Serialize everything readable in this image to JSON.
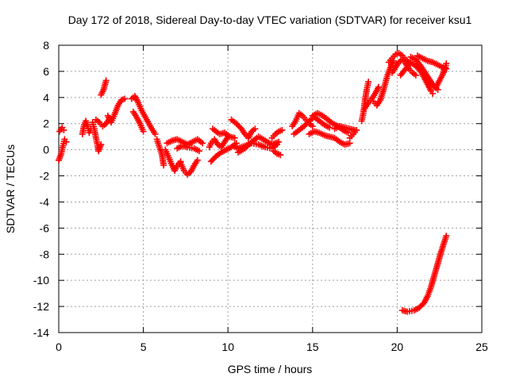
{
  "chart_data": {
    "type": "scatter",
    "title": "Day 172 of 2018, Sidereal Day-to-day VTEC variation (SDTVAR) for receiver ksu1",
    "xlabel": "GPS time / hours",
    "ylabel": "SDTVAR / TECUs",
    "xlim": [
      0,
      25
    ],
    "ylim": [
      -14,
      8
    ],
    "xticks": [
      0,
      5,
      10,
      15,
      20,
      25
    ],
    "yticks": [
      -14,
      -12,
      -10,
      -8,
      -6,
      -4,
      -2,
      0,
      2,
      4,
      6,
      8
    ],
    "grid": true,
    "marker": "+",
    "color": "#ff0000",
    "series": [
      {
        "name": "SDTVAR",
        "tracks": [
          [
            [
              0.0,
              -0.8
            ],
            [
              0.15,
              -0.3
            ],
            [
              0.25,
              0.3
            ],
            [
              0.35,
              0.8
            ],
            [
              0.45,
              0.6
            ]
          ],
          [
            [
              0.05,
              1.4
            ],
            [
              0.2,
              1.7
            ],
            [
              0.3,
              1.5
            ]
          ],
          [
            [
              1.4,
              1.2
            ],
            [
              1.5,
              1.9
            ],
            [
              1.6,
              2.2
            ],
            [
              1.7,
              1.8
            ],
            [
              1.8,
              1.3
            ],
            [
              1.9,
              1.6
            ]
          ],
          [
            [
              2.0,
              2.1
            ],
            [
              2.1,
              1.6
            ],
            [
              2.2,
              0.9
            ],
            [
              2.3,
              0.3
            ],
            [
              2.35,
              -0.1
            ],
            [
              2.5,
              0.4
            ]
          ],
          [
            [
              2.2,
              2.3
            ],
            [
              2.4,
              2.1
            ],
            [
              2.6,
              1.8
            ],
            [
              2.8,
              2.0
            ],
            [
              3.0,
              2.4
            ]
          ],
          [
            [
              2.5,
              4.2
            ],
            [
              2.65,
              4.6
            ],
            [
              2.8,
              5.3
            ]
          ],
          [
            [
              2.9,
              2.6
            ],
            [
              3.1,
              2.1
            ],
            [
              3.3,
              2.7
            ],
            [
              3.5,
              3.4
            ],
            [
              3.7,
              3.8
            ],
            [
              3.9,
              3.9
            ]
          ],
          [
            [
              4.3,
              3.9
            ],
            [
              4.5,
              4.1
            ],
            [
              4.7,
              3.6
            ],
            [
              4.9,
              3.0
            ],
            [
              5.2,
              2.3
            ],
            [
              5.5,
              1.6
            ],
            [
              5.7,
              1.2
            ]
          ],
          [
            [
              4.4,
              2.9
            ],
            [
              4.6,
              2.5
            ],
            [
              4.8,
              2.0
            ],
            [
              5.0,
              1.4
            ]
          ],
          [
            [
              5.8,
              0.8
            ],
            [
              5.95,
              0.2
            ],
            [
              6.1,
              -0.4
            ],
            [
              6.2,
              -1.2
            ]
          ],
          [
            [
              6.3,
              0.0
            ],
            [
              6.5,
              -0.6
            ],
            [
              6.7,
              -1.2
            ],
            [
              6.85,
              -1.6
            ],
            [
              7.0,
              -1.2
            ],
            [
              7.2,
              -0.9
            ]
          ],
          [
            [
              6.4,
              0.5
            ],
            [
              6.7,
              0.7
            ],
            [
              7.0,
              0.8
            ],
            [
              7.3,
              0.6
            ],
            [
              7.6,
              0.4
            ],
            [
              7.9,
              0.6
            ],
            [
              8.2,
              0.8
            ],
            [
              8.5,
              0.5
            ]
          ],
          [
            [
              7.2,
              -1.0
            ],
            [
              7.4,
              -1.6
            ],
            [
              7.6,
              -1.9
            ],
            [
              7.8,
              -1.7
            ],
            [
              8.0,
              -1.2
            ],
            [
              8.2,
              -0.8
            ]
          ],
          [
            [
              7.0,
              0.1
            ],
            [
              7.3,
              0.3
            ],
            [
              7.6,
              0.2
            ],
            [
              8.0,
              0.1
            ],
            [
              8.3,
              -0.1
            ]
          ],
          [
            [
              8.9,
              0.2
            ],
            [
              9.0,
              0.5
            ],
            [
              9.2,
              0.8
            ],
            [
              9.4,
              0.4
            ],
            [
              9.6,
              0.2
            ],
            [
              9.8,
              0.6
            ],
            [
              10.0,
              1.0
            ]
          ],
          [
            [
              9.1,
              1.6
            ],
            [
              9.3,
              1.4
            ],
            [
              9.5,
              1.2
            ],
            [
              9.8,
              1.3
            ],
            [
              10.1,
              1.0
            ],
            [
              10.4,
              0.9
            ]
          ],
          [
            [
              9.0,
              -0.9
            ],
            [
              9.3,
              -0.5
            ],
            [
              9.6,
              -0.2
            ],
            [
              9.9,
              0.0
            ],
            [
              10.2,
              0.2
            ],
            [
              10.5,
              0.5
            ]
          ],
          [
            [
              10.2,
              2.3
            ],
            [
              10.5,
              2.0
            ],
            [
              10.8,
              1.6
            ],
            [
              11.0,
              1.2
            ],
            [
              11.2,
              0.9
            ],
            [
              11.4,
              1.4
            ],
            [
              11.6,
              1.6
            ]
          ],
          [
            [
              10.3,
              0.3
            ],
            [
              10.6,
              0.1
            ],
            [
              11.0,
              0.3
            ],
            [
              11.4,
              0.5
            ],
            [
              11.8,
              0.4
            ],
            [
              12.2,
              0.2
            ],
            [
              12.6,
              0.1
            ],
            [
              12.9,
              0.4
            ]
          ],
          [
            [
              10.6,
              -0.2
            ],
            [
              11.0,
              0.1
            ],
            [
              11.4,
              0.6
            ],
            [
              11.8,
              1.0
            ],
            [
              12.2,
              0.7
            ],
            [
              12.6,
              0.4
            ],
            [
              13.0,
              0.6
            ]
          ],
          [
            [
              12.6,
              0.9
            ],
            [
              12.8,
              1.2
            ],
            [
              13.0,
              1.4
            ],
            [
              13.2,
              1.5
            ]
          ],
          [
            [
              12.7,
              -0.1
            ],
            [
              12.9,
              -0.3
            ],
            [
              13.1,
              -0.4
            ]
          ],
          [
            [
              13.8,
              1.8
            ],
            [
              14.0,
              2.2
            ],
            [
              14.2,
              2.8
            ],
            [
              14.4,
              2.6
            ],
            [
              14.6,
              2.3
            ],
            [
              14.8,
              2.0
            ],
            [
              15.0,
              1.8
            ]
          ],
          [
            [
              13.9,
              1.2
            ],
            [
              14.2,
              1.5
            ],
            [
              14.5,
              1.8
            ],
            [
              14.8,
              2.2
            ],
            [
              15.1,
              2.5
            ],
            [
              15.4,
              2.2
            ],
            [
              15.7,
              1.9
            ],
            [
              16.0,
              1.7
            ]
          ],
          [
            [
              15.0,
              2.6
            ],
            [
              15.3,
              2.8
            ],
            [
              15.6,
              2.6
            ],
            [
              15.9,
              2.3
            ],
            [
              16.2,
              2.0
            ],
            [
              16.5,
              1.8
            ],
            [
              16.8,
              1.5
            ],
            [
              17.1,
              1.3
            ]
          ],
          [
            [
              14.8,
              1.2
            ],
            [
              15.1,
              1.4
            ],
            [
              15.4,
              1.3
            ],
            [
              15.7,
              1.1
            ],
            [
              16.0,
              1.0
            ],
            [
              16.3,
              0.9
            ],
            [
              16.6,
              0.6
            ],
            [
              16.9,
              0.4
            ],
            [
              17.2,
              0.5
            ]
          ],
          [
            [
              16.3,
              1.6
            ],
            [
              16.6,
              1.8
            ],
            [
              16.9,
              1.7
            ],
            [
              17.2,
              1.6
            ],
            [
              17.5,
              1.5
            ]
          ],
          [
            [
              17.2,
              0.9
            ],
            [
              17.4,
              1.2
            ],
            [
              17.6,
              1.5
            ]
          ],
          [
            [
              17.9,
              2.2
            ],
            [
              18.0,
              2.8
            ],
            [
              18.1,
              3.8
            ],
            [
              18.2,
              4.6
            ],
            [
              18.3,
              5.2
            ]
          ],
          [
            [
              18.1,
              3.2
            ],
            [
              18.3,
              3.6
            ],
            [
              18.5,
              3.9
            ],
            [
              18.7,
              4.3
            ],
            [
              18.9,
              4.8
            ]
          ],
          [
            [
              18.6,
              3.7
            ],
            [
              18.8,
              3.4
            ],
            [
              19.0,
              3.8
            ],
            [
              19.2,
              4.6
            ],
            [
              19.4,
              5.6
            ],
            [
              19.6,
              6.3
            ],
            [
              19.8,
              6.8
            ]
          ],
          [
            [
              19.5,
              6.7
            ],
            [
              19.7,
              7.0
            ],
            [
              19.9,
              7.3
            ],
            [
              20.1,
              7.4
            ],
            [
              20.3,
              7.2
            ],
            [
              20.5,
              6.9
            ],
            [
              20.7,
              6.7
            ]
          ],
          [
            [
              19.7,
              5.9
            ],
            [
              19.9,
              6.3
            ],
            [
              20.1,
              6.7
            ],
            [
              20.3,
              6.9
            ],
            [
              20.5,
              6.6
            ],
            [
              20.7,
              6.2
            ],
            [
              20.9,
              5.9
            ],
            [
              21.1,
              5.7
            ]
          ],
          [
            [
              20.2,
              5.7
            ],
            [
              20.5,
              6.2
            ],
            [
              20.8,
              6.7
            ],
            [
              21.1,
              6.4
            ],
            [
              21.4,
              6.0
            ],
            [
              21.6,
              5.5
            ],
            [
              21.8,
              5.0
            ],
            [
              22.0,
              4.5
            ],
            [
              22.1,
              4.3
            ]
          ],
          [
            [
              20.8,
              7.1
            ],
            [
              21.1,
              6.9
            ],
            [
              21.4,
              6.4
            ],
            [
              21.7,
              5.8
            ],
            [
              22.0,
              5.2
            ],
            [
              22.2,
              4.8
            ],
            [
              22.4,
              4.6
            ]
          ],
          [
            [
              21.2,
              7.2
            ],
            [
              21.5,
              7.0
            ],
            [
              21.8,
              6.8
            ],
            [
              22.1,
              6.7
            ],
            [
              22.4,
              6.5
            ],
            [
              22.7,
              6.3
            ],
            [
              22.9,
              6.2
            ]
          ],
          [
            [
              22.3,
              4.8
            ],
            [
              22.5,
              5.3
            ],
            [
              22.7,
              5.8
            ],
            [
              22.85,
              6.3
            ],
            [
              22.9,
              6.6
            ]
          ],
          [
            [
              20.3,
              -12.3
            ],
            [
              20.6,
              -12.4
            ],
            [
              21.0,
              -12.3
            ],
            [
              21.3,
              -12.1
            ],
            [
              21.6,
              -11.7
            ],
            [
              21.8,
              -11.2
            ],
            [
              22.0,
              -10.5
            ],
            [
              22.2,
              -9.6
            ],
            [
              22.4,
              -8.7
            ],
            [
              22.6,
              -7.8
            ],
            [
              22.8,
              -7.0
            ],
            [
              22.9,
              -6.6
            ]
          ]
        ]
      }
    ]
  }
}
